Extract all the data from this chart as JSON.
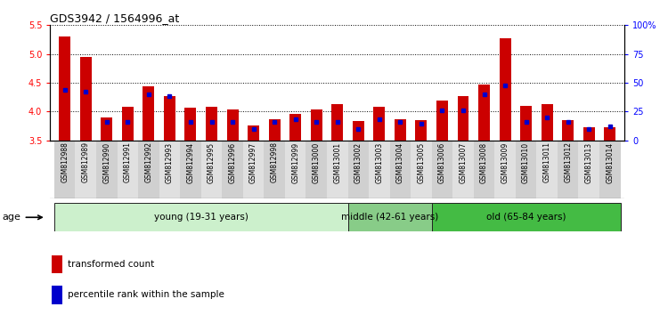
{
  "title": "GDS3942 / 1564996_at",
  "samples": [
    "GSM812988",
    "GSM812989",
    "GSM812990",
    "GSM812991",
    "GSM812992",
    "GSM812993",
    "GSM812994",
    "GSM812995",
    "GSM812996",
    "GSM812997",
    "GSM812998",
    "GSM812999",
    "GSM813000",
    "GSM813001",
    "GSM813002",
    "GSM813003",
    "GSM813004",
    "GSM813005",
    "GSM813006",
    "GSM813007",
    "GSM813008",
    "GSM813009",
    "GSM813010",
    "GSM813011",
    "GSM813012",
    "GSM813013",
    "GSM813014"
  ],
  "red_values": [
    5.3,
    4.94,
    3.9,
    4.08,
    4.43,
    4.27,
    4.07,
    4.08,
    4.03,
    3.75,
    3.87,
    3.95,
    4.04,
    4.12,
    3.83,
    4.08,
    3.87,
    3.85,
    4.19,
    4.27,
    4.47,
    5.27,
    4.1,
    4.13,
    3.85,
    3.72,
    3.73
  ],
  "blue_values": [
    44,
    42,
    16,
    16,
    40,
    38,
    16,
    16,
    16,
    10,
    16,
    18,
    16,
    16,
    10,
    18,
    16,
    14,
    26,
    26,
    40,
    48,
    16,
    20,
    16,
    10,
    12
  ],
  "ylim_left": [
    3.5,
    5.5
  ],
  "ylim_right": [
    0,
    100
  ],
  "yticks_left": [
    3.5,
    4.0,
    4.5,
    5.0,
    5.5
  ],
  "yticks_right": [
    0,
    25,
    50,
    75,
    100
  ],
  "ytick_labels_right": [
    "0",
    "25",
    "50",
    "75",
    "100%"
  ],
  "groups": [
    {
      "label": "young (19-31 years)",
      "start": 0,
      "end": 14,
      "color": "#ccf0cc"
    },
    {
      "label": "middle (42-61 years)",
      "start": 14,
      "end": 18,
      "color": "#88cc88"
    },
    {
      "label": "old (65-84 years)",
      "start": 18,
      "end": 27,
      "color": "#44bb44"
    }
  ],
  "bar_color": "#cc0000",
  "blue_color": "#0000cc",
  "bar_width": 0.55,
  "baseline": 3.5,
  "legend_red": "transformed count",
  "legend_blue": "percentile rank within the sample",
  "age_label": "age"
}
